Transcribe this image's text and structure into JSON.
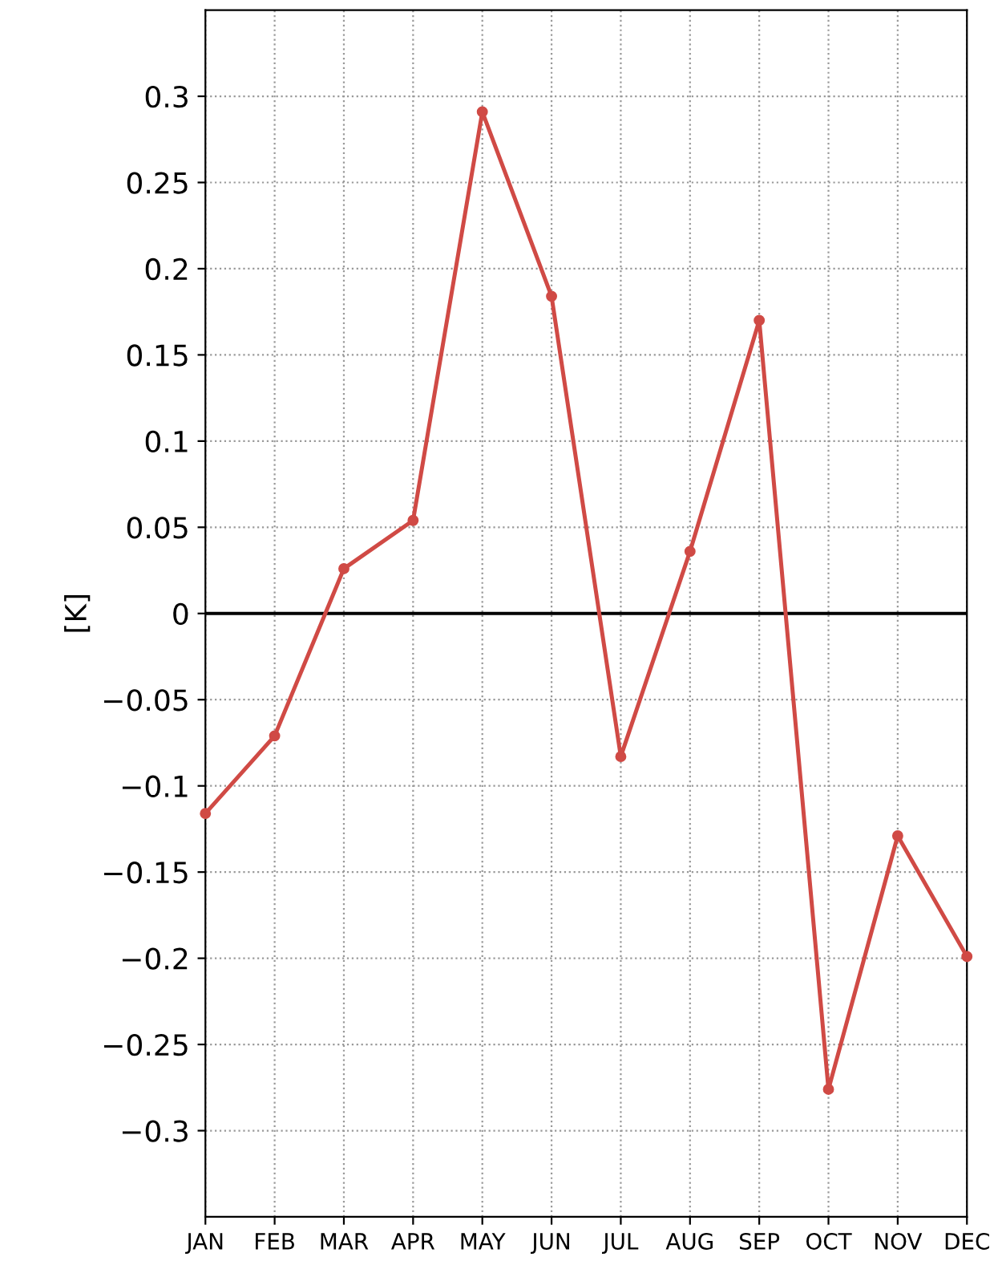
{
  "chart_data": {
    "type": "line",
    "ylabel": "[K]",
    "categories": [
      "JAN",
      "FEB",
      "MAR",
      "APR",
      "MAY",
      "JUN",
      "JUL",
      "AUG",
      "SEP",
      "OCT",
      "NOV",
      "DEC"
    ],
    "series": [
      {
        "color": "#d04a45",
        "values": [
          -0.116,
          -0.071,
          0.026,
          0.054,
          0.291,
          0.184,
          -0.083,
          0.036,
          0.17,
          -0.276,
          -0.129,
          -0.199
        ]
      }
    ],
    "ylim": [
      -0.35,
      0.35
    ],
    "yticks": [
      -0.3,
      -0.25,
      -0.2,
      -0.15,
      -0.1,
      -0.05,
      0,
      0.05,
      0.1,
      0.15,
      0.2,
      0.25,
      0.3
    ],
    "ref_lines": [
      {
        "axis": "y",
        "value": 0,
        "color": "#000000",
        "line_style": "solid"
      }
    ],
    "grid": true,
    "marker": "circle",
    "line_style": "solid",
    "legend": false
  }
}
